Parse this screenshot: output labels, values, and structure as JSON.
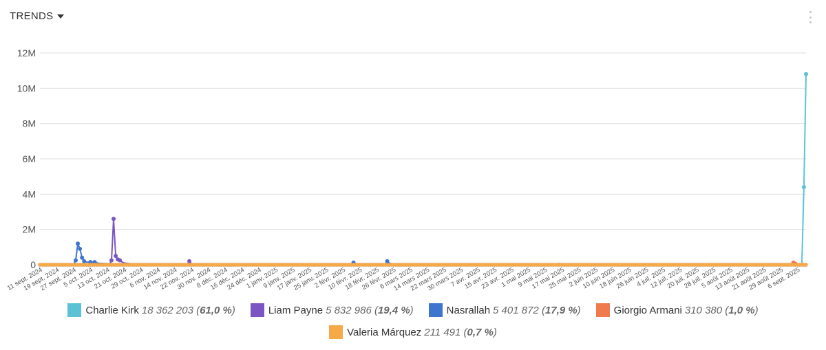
{
  "header": {
    "title": "TRENDS"
  },
  "chart_data": {
    "type": "line",
    "y_ticks": [
      {
        "value": 0,
        "label": "0"
      },
      {
        "value": 2000000,
        "label": "2M"
      },
      {
        "value": 4000000,
        "label": "4M"
      },
      {
        "value": 6000000,
        "label": "6M"
      },
      {
        "value": 8000000,
        "label": "8M"
      },
      {
        "value": 10000000,
        "label": "10M"
      },
      {
        "value": 12000000,
        "label": "12M"
      }
    ],
    "ylim": [
      0,
      12000000
    ],
    "x_range": [
      "2024-09-11",
      "2025-09-10"
    ],
    "x_ticks": [
      {
        "date": "2024-09-11",
        "label": "11 sept. 2024"
      },
      {
        "date": "2024-09-19",
        "label": "19 sept. 2024"
      },
      {
        "date": "2024-09-27",
        "label": "27 sept. 2024"
      },
      {
        "date": "2024-10-05",
        "label": "5 oct. 2024"
      },
      {
        "date": "2024-10-13",
        "label": "13 oct. 2024"
      },
      {
        "date": "2024-10-21",
        "label": "21 oct. 2024"
      },
      {
        "date": "2024-10-29",
        "label": "29 oct. 2024"
      },
      {
        "date": "2024-11-06",
        "label": "6 nov. 2024"
      },
      {
        "date": "2024-11-14",
        "label": "14 nov. 2024"
      },
      {
        "date": "2024-11-22",
        "label": "22 nov. 2024"
      },
      {
        "date": "2024-11-30",
        "label": "30 nov. 2024"
      },
      {
        "date": "2024-12-08",
        "label": "8 déc. 2024"
      },
      {
        "date": "2024-12-16",
        "label": "16 déc. 2024"
      },
      {
        "date": "2024-12-24",
        "label": "24 déc. 2024"
      },
      {
        "date": "2025-01-01",
        "label": "1 janv. 2025"
      },
      {
        "date": "2025-01-09",
        "label": "9 janv. 2025"
      },
      {
        "date": "2025-01-17",
        "label": "17 janv. 2025"
      },
      {
        "date": "2025-01-25",
        "label": "25 janv. 2025"
      },
      {
        "date": "2025-02-02",
        "label": "2 févr. 2025"
      },
      {
        "date": "2025-02-10",
        "label": "10 févr. 2025"
      },
      {
        "date": "2025-02-18",
        "label": "18 févr. 2025"
      },
      {
        "date": "2025-02-26",
        "label": "26 févr. 2025"
      },
      {
        "date": "2025-03-06",
        "label": "6 mars 2025"
      },
      {
        "date": "2025-03-14",
        "label": "14 mars 2025"
      },
      {
        "date": "2025-03-22",
        "label": "22 mars 2025"
      },
      {
        "date": "2025-03-30",
        "label": "30 mars 2025"
      },
      {
        "date": "2025-04-07",
        "label": "7 avr. 2025"
      },
      {
        "date": "2025-04-15",
        "label": "15 avr. 2025"
      },
      {
        "date": "2025-04-23",
        "label": "23 avr. 2025"
      },
      {
        "date": "2025-05-01",
        "label": "1 mai 2025"
      },
      {
        "date": "2025-05-09",
        "label": "9 mai 2025"
      },
      {
        "date": "2025-05-17",
        "label": "17 mai 2025"
      },
      {
        "date": "2025-05-25",
        "label": "25 mai 2025"
      },
      {
        "date": "2025-06-02",
        "label": "2 juin 2025"
      },
      {
        "date": "2025-06-10",
        "label": "10 juin 2025"
      },
      {
        "date": "2025-06-18",
        "label": "18 juin 2025"
      },
      {
        "date": "2025-06-26",
        "label": "26 juin 2025"
      },
      {
        "date": "2025-07-04",
        "label": "4 juil. 2025"
      },
      {
        "date": "2025-07-12",
        "label": "12 juil. 2025"
      },
      {
        "date": "2025-07-20",
        "label": "20 juil. 2025"
      },
      {
        "date": "2025-07-28",
        "label": "28 juil. 2025"
      },
      {
        "date": "2025-08-05",
        "label": "5 août 2025"
      },
      {
        "date": "2025-08-13",
        "label": "13 août 2025"
      },
      {
        "date": "2025-08-21",
        "label": "21 août 2025"
      },
      {
        "date": "2025-08-29",
        "label": "29 août 2025"
      },
      {
        "date": "2025-09-06",
        "label": "6 sept. 2025"
      }
    ],
    "grid": true,
    "legend_position": "bottom",
    "series": [
      {
        "name": "Charlie Kirk",
        "color": "#5bc2d6",
        "total": "18 362 203",
        "share": "61,0 %",
        "points": [
          [
            "2024-09-11",
            0
          ],
          [
            "2024-11-20",
            8000
          ],
          [
            "2025-01-10",
            5000
          ],
          [
            "2025-03-10",
            6000
          ],
          [
            "2025-05-10",
            7000
          ],
          [
            "2025-07-10",
            6000
          ],
          [
            "2025-09-08",
            10000
          ],
          [
            "2025-09-09",
            4400000
          ],
          [
            "2025-09-10",
            10800000
          ]
        ],
        "markers": [
          [
            "2025-09-09",
            4400000
          ],
          [
            "2025-09-10",
            10800000
          ]
        ]
      },
      {
        "name": "Liam Payne",
        "color": "#7b56c2",
        "total": "5 832 986",
        "share": "19,4 %",
        "points": [
          [
            "2024-09-11",
            0
          ],
          [
            "2024-10-14",
            0
          ],
          [
            "2024-10-15",
            250000
          ],
          [
            "2024-10-16",
            2600000
          ],
          [
            "2024-10-17",
            500000
          ],
          [
            "2024-10-18",
            300000
          ],
          [
            "2024-10-19",
            250000
          ],
          [
            "2024-10-20",
            150000
          ],
          [
            "2024-10-21",
            100000
          ],
          [
            "2024-10-24",
            60000
          ],
          [
            "2024-10-28",
            40000
          ],
          [
            "2024-11-05",
            30000
          ],
          [
            "2024-11-20",
            0
          ],
          [
            "2024-11-21",
            200000
          ],
          [
            "2024-11-22",
            50000
          ],
          [
            "2024-11-25",
            30000
          ],
          [
            "2024-12-05",
            0
          ],
          [
            "2025-09-10",
            0
          ]
        ],
        "markers": [
          [
            "2024-10-15",
            250000
          ],
          [
            "2024-10-16",
            2600000
          ],
          [
            "2024-10-17",
            500000
          ],
          [
            "2024-10-18",
            300000
          ],
          [
            "2024-10-19",
            250000
          ],
          [
            "2024-11-21",
            200000
          ]
        ]
      },
      {
        "name": "Nasrallah",
        "color": "#3f74cf",
        "total": "5 401 872",
        "share": "17,9 %",
        "points": [
          [
            "2024-09-11",
            0
          ],
          [
            "2024-09-20",
            40000
          ],
          [
            "2024-09-27",
            20000
          ],
          [
            "2024-09-28",
            250000
          ],
          [
            "2024-09-29",
            1200000
          ],
          [
            "2024-09-30",
            900000
          ],
          [
            "2024-10-01",
            400000
          ],
          [
            "2024-10-02",
            200000
          ],
          [
            "2024-10-03",
            150000
          ],
          [
            "2024-10-05",
            150000
          ],
          [
            "2024-10-07",
            150000
          ],
          [
            "2024-10-09",
            80000
          ],
          [
            "2024-10-14",
            60000
          ],
          [
            "2024-10-25",
            30000
          ],
          [
            "2024-11-10",
            20000
          ],
          [
            "2025-01-15",
            10000
          ],
          [
            "2025-02-06",
            0
          ],
          [
            "2025-02-07",
            120000
          ],
          [
            "2025-02-08",
            0
          ],
          [
            "2025-02-22",
            0
          ],
          [
            "2025-02-23",
            200000
          ],
          [
            "2025-02-24",
            100000
          ],
          [
            "2025-02-26",
            20000
          ],
          [
            "2025-03-10",
            0
          ],
          [
            "2025-09-10",
            0
          ]
        ],
        "markers": [
          [
            "2024-09-28",
            250000
          ],
          [
            "2024-09-29",
            1200000
          ],
          [
            "2024-09-30",
            900000
          ],
          [
            "2024-10-01",
            400000
          ],
          [
            "2024-10-02",
            200000
          ],
          [
            "2024-10-05",
            150000
          ],
          [
            "2024-10-07",
            150000
          ],
          [
            "2025-02-07",
            120000
          ],
          [
            "2025-02-23",
            200000
          ]
        ]
      },
      {
        "name": "Giorgio Armani",
        "color": "#ef7a4d",
        "total": "310 380",
        "share": "1,0 %",
        "points": [
          [
            "2024-09-11",
            0
          ],
          [
            "2025-05-16",
            0
          ],
          [
            "2025-05-17",
            40000
          ],
          [
            "2025-05-18",
            0
          ],
          [
            "2025-09-03",
            0
          ],
          [
            "2025-09-04",
            120000
          ],
          [
            "2025-09-05",
            60000
          ],
          [
            "2025-09-06",
            20000
          ],
          [
            "2025-09-10",
            10000
          ]
        ],
        "markers": [
          [
            "2025-09-04",
            120000
          ],
          [
            "2025-09-05",
            60000
          ]
        ]
      },
      {
        "name": "Valeria Márquez",
        "color": "#f5a947",
        "total": "211 491",
        "share": "0,7 %",
        "points": [
          [
            "2024-09-11",
            0
          ],
          [
            "2025-05-14",
            0
          ],
          [
            "2025-05-15",
            60000
          ],
          [
            "2025-05-16",
            80000
          ],
          [
            "2025-05-17",
            20000
          ],
          [
            "2025-05-20",
            0
          ],
          [
            "2025-09-10",
            0
          ]
        ],
        "markers": []
      }
    ]
  }
}
